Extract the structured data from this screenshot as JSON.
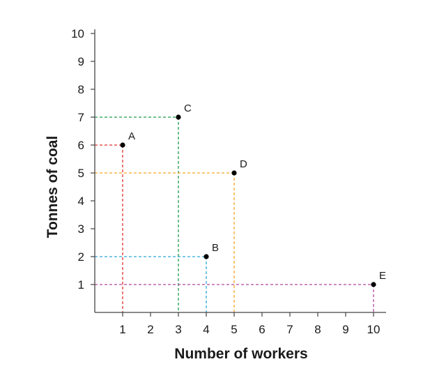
{
  "chart_data": {
    "type": "scatter",
    "xlabel": "Number of workers",
    "ylabel": "Tonnes of coal",
    "xlim": [
      0,
      10
    ],
    "ylim": [
      0,
      10
    ],
    "x_ticks": [
      1,
      2,
      3,
      4,
      5,
      6,
      7,
      8,
      9,
      10
    ],
    "y_ticks": [
      1,
      2,
      3,
      4,
      5,
      6,
      7,
      8,
      9,
      10
    ],
    "grid": false,
    "points": [
      {
        "label": "A",
        "x": 1,
        "y": 6,
        "guide_color": "#e0302d"
      },
      {
        "label": "B",
        "x": 4,
        "y": 2,
        "guide_color": "#2aa8d8"
      },
      {
        "label": "C",
        "x": 3,
        "y": 7,
        "guide_color": "#1e9a4a"
      },
      {
        "label": "D",
        "x": 5,
        "y": 5,
        "guide_color": "#f5a623"
      },
      {
        "label": "E",
        "x": 10,
        "y": 1,
        "guide_color": "#b0479a"
      }
    ]
  }
}
